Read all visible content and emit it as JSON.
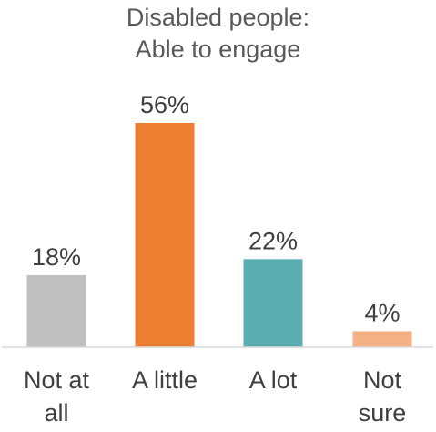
{
  "chart_data": {
    "type": "bar",
    "title_lines": [
      "Disabled people:",
      "Able to engage"
    ],
    "categories": [
      [
        "Not at",
        "all"
      ],
      [
        "A little"
      ],
      [
        "A lot"
      ],
      [
        "Not",
        "sure"
      ]
    ],
    "values": [
      18,
      56,
      22,
      4
    ],
    "value_labels": [
      "18%",
      "56%",
      "22%",
      "4%"
    ],
    "colors": [
      "#bfbfbf",
      "#ed7d31",
      "#5aadb0",
      "#f4b183"
    ],
    "ylim": [
      0,
      56
    ],
    "unit": "%",
    "grid": false,
    "legend": "none"
  }
}
